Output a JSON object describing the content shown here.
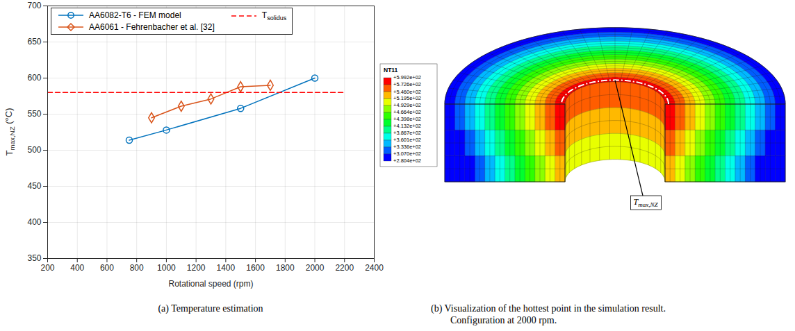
{
  "chart_data": [
    {
      "type": "line",
      "caption": "(a) Temperature estimation",
      "xlabel": "Rotational speed (rpm)",
      "ylabel": "Tmax,NZ (°C)",
      "subscripts": [
        "max,NZ",
        "solidus"
      ],
      "series": [
        {
          "name": "AA6082-T6 - FEM model",
          "color": "#0072bd",
          "marker": "circle",
          "line_style": "solid",
          "x": [
            750,
            1000,
            1500,
            2000
          ],
          "values": [
            514,
            528,
            558,
            600
          ]
        },
        {
          "name": "AA6061 - Fehrenbacher et al. [32]",
          "color": "#d95319",
          "marker": "diamond",
          "line_style": "solid",
          "x": [
            900,
            1100,
            1300,
            1500,
            1700
          ],
          "values": [
            545,
            561,
            571,
            588,
            590
          ]
        },
        {
          "name": "Tsolidus",
          "color": "#ff0000",
          "marker": "none",
          "line_style": "dashed",
          "x": [
            200,
            2200
          ],
          "values": [
            580,
            580
          ]
        }
      ],
      "xlim": [
        200,
        2400
      ],
      "xticks": [
        200,
        400,
        600,
        800,
        1000,
        1200,
        1400,
        1600,
        1800,
        2000,
        2200,
        2400
      ],
      "ylim": [
        350,
        700
      ],
      "yticks": [
        350,
        400,
        450,
        500,
        550,
        600,
        650,
        700
      ],
      "grid": true,
      "legend": "upper left"
    },
    {
      "type": "contour",
      "caption": [
        "(b) Visualization of the hottest point in the simulation result.",
        "Configuration at 2000 rpm."
      ],
      "colorbar_title": "NT11",
      "clim": [
        280.4,
        599.2
      ],
      "cticks": [
        {
          "value": 599.2,
          "label": "+5.992e+02"
        },
        {
          "value": 572.6,
          "label": "+5.726e+02"
        },
        {
          "value": 546.0,
          "label": "+5.460e+02"
        },
        {
          "value": 519.5,
          "label": "+5.195e+02"
        },
        {
          "value": 492.9,
          "label": "+4.929e+02"
        },
        {
          "value": 466.4,
          "label": "+4.664e+02"
        },
        {
          "value": 439.8,
          "label": "+4.398e+02"
        },
        {
          "value": 413.2,
          "label": "+4.132e+02"
        },
        {
          "value": 386.7,
          "label": "+3.867e+02"
        },
        {
          "value": 360.1,
          "label": "+3.601e+02"
        },
        {
          "value": 333.6,
          "label": "+3.336e+02"
        },
        {
          "value": 307.0,
          "label": "+3.070e+02"
        },
        {
          "value": 280.4,
          "label": "+2.804e+02"
        }
      ],
      "colors": [
        "#ff0000",
        "#ff5d00",
        "#ffb900",
        "#e8ff00",
        "#8bff00",
        "#2eff00",
        "#00ff2e",
        "#00ff8b",
        "#00ffe8",
        "#00b9ff",
        "#005dff",
        "#0000ff"
      ],
      "annotation": "Tmax,NZ",
      "subscripts": [
        "max,NZ"
      ]
    }
  ]
}
